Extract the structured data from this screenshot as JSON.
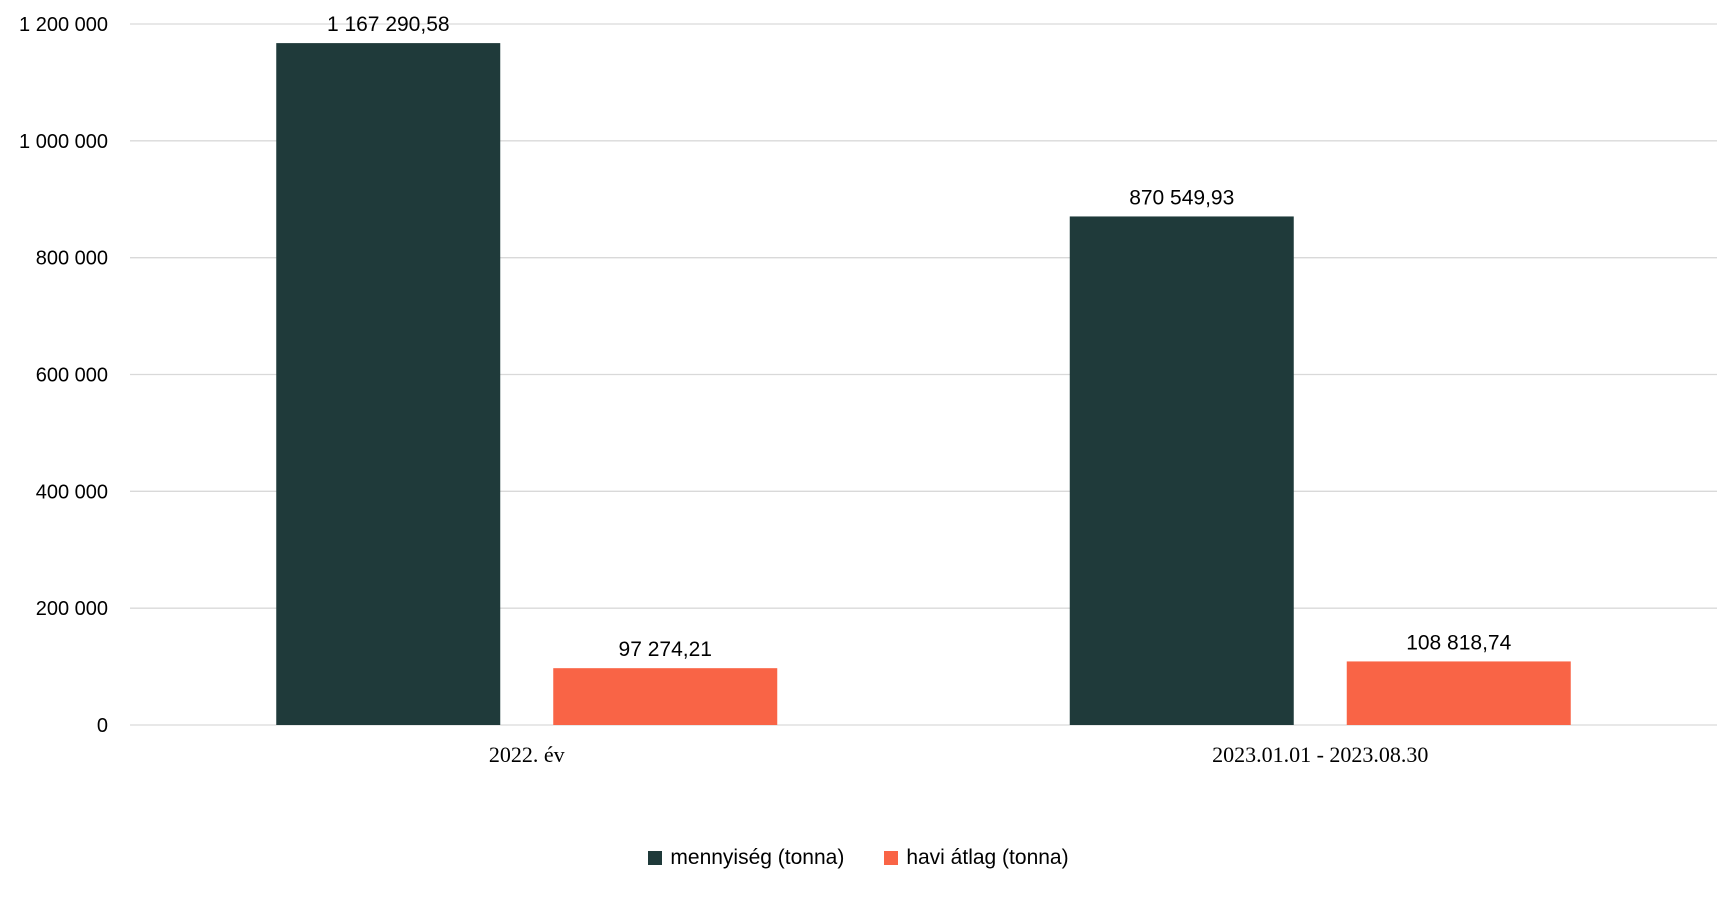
{
  "chart_data": {
    "type": "bar",
    "categories": [
      "2022. év",
      "2023.01.01 - 2023.08.30"
    ],
    "series": [
      {
        "name": "mennyiség (tonna)",
        "color": "#1f3a3a",
        "values": [
          1167290.58,
          870549.93
        ],
        "labels": [
          "1 167 290,58",
          "870 549,93"
        ]
      },
      {
        "name": "havi átlag (tonna)",
        "color": "#f96446",
        "values": [
          97274.21,
          108818.74
        ],
        "labels": [
          "97 274,21",
          "108 818,74"
        ]
      }
    ],
    "ylim": [
      0,
      1200000
    ],
    "yticks": [
      0,
      200000,
      400000,
      600000,
      800000,
      1000000,
      1200000
    ],
    "ytick_labels": [
      "0",
      "200 000",
      "400 000",
      "600 000",
      "800 000",
      "1 000 000",
      "1 200 000"
    ],
    "grid": true,
    "legend": "bottom"
  }
}
